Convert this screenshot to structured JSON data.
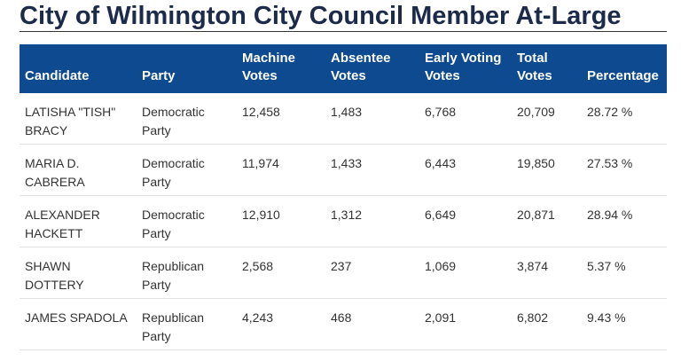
{
  "header": {
    "title": "City of Wilmington City Council Member At-Large"
  },
  "table": {
    "headers": [
      "Candidate",
      "Party",
      "Machine Votes",
      "Absentee Votes",
      "Early Voting Votes",
      "Total Votes",
      "Percentage"
    ],
    "rows": [
      [
        "LATISHA \"TISH\" BRACY",
        "Democratic Party",
        "12,458",
        "1,483",
        "6,768",
        "20,709",
        "28.72 %"
      ],
      [
        "MARIA D. CABRERA",
        "Democratic Party",
        "11,974",
        "1,433",
        "6,443",
        "19,850",
        "27.53 %"
      ],
      [
        "ALEXANDER HACKETT",
        "Democratic Party",
        "12,910",
        "1,312",
        "6,649",
        "20,871",
        "28.94 %"
      ],
      [
        "SHAWN DOTTERY",
        "Republican Party",
        "2,568",
        "237",
        "1,069",
        "3,874",
        "5.37 %"
      ],
      [
        "JAMES SPADOLA",
        "Republican Party",
        "4,243",
        "468",
        "2,091",
        "6,802",
        "9.43 %"
      ]
    ]
  }
}
